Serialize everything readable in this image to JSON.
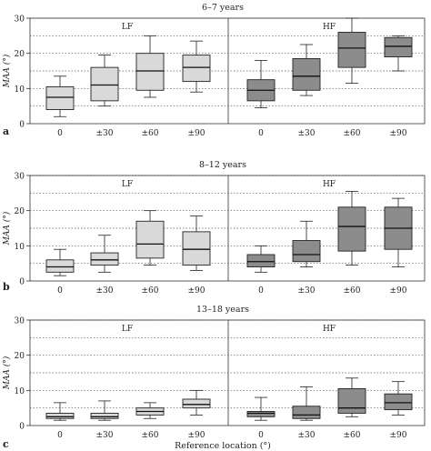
{
  "chart_data": [
    {
      "type": "boxplot",
      "panel_letter": "a",
      "title": "6–7 years",
      "ylabel": "MAA (°)",
      "ylim": [
        0,
        30
      ],
      "yticks": [
        0,
        10,
        20,
        30
      ],
      "grid_lines": [
        5,
        10,
        15,
        20,
        25,
        30
      ],
      "grid": "dotted horizontal",
      "categories": [
        "0",
        "±30",
        "±60",
        "±90"
      ],
      "groups": [
        {
          "label": "LF",
          "fill": "#d9d9d9",
          "boxes": [
            {
              "min": 2,
              "q1": 4,
              "median": 7.5,
              "q3": 10.5,
              "max": 13.5
            },
            {
              "min": 5,
              "q1": 6.5,
              "median": 11,
              "q3": 16,
              "max": 19.5
            },
            {
              "min": 7.5,
              "q1": 9.5,
              "median": 15,
              "q3": 20,
              "max": 25
            },
            {
              "min": 9,
              "q1": 12,
              "median": 16,
              "q3": 19.5,
              "max": 23.5
            }
          ]
        },
        {
          "label": "HF",
          "fill": "#8c8c8c",
          "boxes": [
            {
              "min": 4.5,
              "q1": 6.5,
              "median": 9.5,
              "q3": 12.5,
              "max": 18
            },
            {
              "min": 8,
              "q1": 9.5,
              "median": 13.5,
              "q3": 18.5,
              "max": 22.5
            },
            {
              "min": 11.5,
              "q1": 16,
              "median": 21.5,
              "q3": 26,
              "max": 30
            },
            {
              "min": 15,
              "q1": 19,
              "median": 22,
              "q3": 24.5,
              "max": 25
            }
          ]
        }
      ]
    },
    {
      "type": "boxplot",
      "panel_letter": "b",
      "title": "8–12 years",
      "ylabel": "MAA (°)",
      "ylim": [
        0,
        30
      ],
      "yticks": [
        0,
        10,
        20,
        30
      ],
      "grid_lines": [
        5,
        10,
        15,
        20,
        25,
        30
      ],
      "grid": "dotted horizontal",
      "categories": [
        "0",
        "±30",
        "±60",
        "±90"
      ],
      "groups": [
        {
          "label": "LF",
          "fill": "#d9d9d9",
          "boxes": [
            {
              "min": 1.5,
              "q1": 2.5,
              "median": 4,
              "q3": 6,
              "max": 9
            },
            {
              "min": 2.5,
              "q1": 4.5,
              "median": 6,
              "q3": 8,
              "max": 13
            },
            {
              "min": 4.5,
              "q1": 6.5,
              "median": 10.5,
              "q3": 17,
              "max": 20
            },
            {
              "min": 3,
              "q1": 4.5,
              "median": 9,
              "q3": 14,
              "max": 18.5
            }
          ]
        },
        {
          "label": "HF",
          "fill": "#8c8c8c",
          "boxes": [
            {
              "min": 2.5,
              "q1": 4,
              "median": 5.5,
              "q3": 7.5,
              "max": 10
            },
            {
              "min": 4,
              "q1": 5.5,
              "median": 7.5,
              "q3": 11.5,
              "max": 17
            },
            {
              "min": 4.5,
              "q1": 8.5,
              "median": 15.5,
              "q3": 21,
              "max": 25.5
            },
            {
              "min": 4,
              "q1": 9,
              "median": 15,
              "q3": 21,
              "max": 23.5
            }
          ]
        }
      ]
    },
    {
      "type": "boxplot",
      "panel_letter": "c",
      "title": "13–18 years",
      "ylabel": "MAA (°)",
      "xlabel": "Reference location (°)",
      "ylim": [
        0,
        30
      ],
      "yticks": [
        0,
        10,
        20,
        30
      ],
      "grid_lines": [
        5,
        10,
        15,
        20,
        25,
        30
      ],
      "grid": "dotted horizontal",
      "categories": [
        "0",
        "±30",
        "±60",
        "±90"
      ],
      "groups": [
        {
          "label": "LF",
          "fill": "#d9d9d9",
          "boxes": [
            {
              "min": 1.5,
              "q1": 2,
              "median": 2.5,
              "q3": 3.5,
              "max": 6.5
            },
            {
              "min": 1.5,
              "q1": 2,
              "median": 2.5,
              "q3": 3.5,
              "max": 7
            },
            {
              "min": 2,
              "q1": 3,
              "median": 4,
              "q3": 5,
              "max": 6.5
            },
            {
              "min": 3,
              "q1": 5,
              "median": 6,
              "q3": 7.5,
              "max": 10
            }
          ]
        },
        {
          "label": "HF",
          "fill": "#8c8c8c",
          "boxes": [
            {
              "min": 1.5,
              "q1": 2.5,
              "median": 3.5,
              "q3": 4,
              "max": 8
            },
            {
              "min": 1.5,
              "q1": 2,
              "median": 3,
              "q3": 5.5,
              "max": 11
            },
            {
              "min": 2.5,
              "q1": 3.5,
              "median": 5,
              "q3": 10.5,
              "max": 13.5
            },
            {
              "min": 3,
              "q1": 4.5,
              "median": 6.5,
              "q3": 9,
              "max": 12.5
            }
          ]
        }
      ]
    }
  ]
}
